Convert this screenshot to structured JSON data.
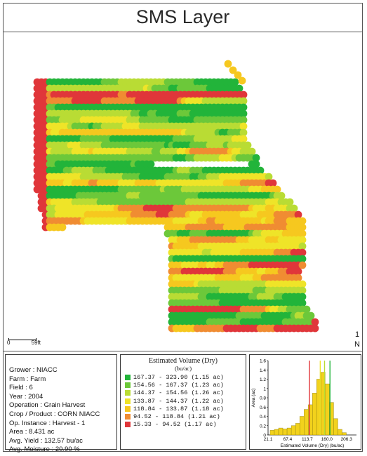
{
  "header": {
    "title": "SMS Layer"
  },
  "map": {
    "scale_start": "0",
    "scale_label": "59ft",
    "north_value": "1",
    "north_label": "N"
  },
  "info": {
    "lines": [
      "Grower : NIACC",
      "Farm : Farm",
      "Field : 6",
      "Year : 2004",
      "Operation : Grain Harvest",
      "Crop / Product : CORN NIACC",
      "Op. Instance : Harvest - 1",
      "Area : 8.431 ac",
      "Avg. Yield : 132.57 bu/ac",
      "Avg. Moisture : 20.90 %"
    ]
  },
  "legend": {
    "title": "Estimated Volume (Dry)",
    "unit": "(bu/ac)",
    "items": [
      {
        "range": "167.37 - 323.90 (1.15 ac)",
        "color": "#22b43a"
      },
      {
        "range": "154.56 - 167.37 (1.23 ac)",
        "color": "#6cc83a"
      },
      {
        "range": "144.37 - 154.56 (1.26 ac)",
        "color": "#b9dc34"
      },
      {
        "range": "133.87 - 144.37 (1.22 ac)",
        "color": "#efe428"
      },
      {
        "range": "118.84 - 133.87 (1.18 ac)",
        "color": "#f6c81f"
      },
      {
        "range": "94.52 - 118.84 (1.21 ac)",
        "color": "#f08c32"
      },
      {
        "range": "15.33 - 94.52 (1.17 ac)",
        "color": "#e0363a"
      }
    ]
  },
  "chart_data": {
    "type": "bar",
    "title": "",
    "xlabel": "Estimated Volume (Dry) (bu/ac)",
    "ylabel": "Area (ac)",
    "ylim": [
      0,
      1.6
    ],
    "xlim": [
      21.1,
      230
    ],
    "yticks": [
      "0",
      "0.2",
      "0.4",
      "0.6",
      "0.8",
      "1",
      "1.2",
      "1.4",
      "1.6"
    ],
    "xticks": [
      "21.1",
      "67.4",
      "113.7",
      "160.0",
      "206.3"
    ],
    "xtick_values": [
      21.1,
      67.4,
      113.7,
      160.0,
      206.3
    ],
    "bins": [
      {
        "x": 31,
        "value": 0.1
      },
      {
        "x": 41,
        "value": 0.12
      },
      {
        "x": 51,
        "value": 0.15
      },
      {
        "x": 61,
        "value": 0.13
      },
      {
        "x": 71,
        "value": 0.15
      },
      {
        "x": 81,
        "value": 0.2
      },
      {
        "x": 91,
        "value": 0.25
      },
      {
        "x": 101,
        "value": 0.4
      },
      {
        "x": 111,
        "value": 0.55
      },
      {
        "x": 121,
        "value": 0.65
      },
      {
        "x": 131,
        "value": 0.9
      },
      {
        "x": 141,
        "value": 1.2
      },
      {
        "x": 151,
        "value": 1.35
      },
      {
        "x": 161,
        "value": 1.1
      },
      {
        "x": 171,
        "value": 0.7
      },
      {
        "x": 181,
        "value": 0.35
      },
      {
        "x": 191,
        "value": 0.12
      },
      {
        "x": 201,
        "value": 0.05
      }
    ],
    "bin_width": 10,
    "bar_color": "#f2d21c",
    "markers": [
      {
        "x": 118.84,
        "color": "#e0363a"
      },
      {
        "x": 144.37,
        "color": "#efe428"
      },
      {
        "x": 154.56,
        "color": "#b9dc34"
      },
      {
        "x": 167.37,
        "color": "#22b43a"
      }
    ]
  }
}
